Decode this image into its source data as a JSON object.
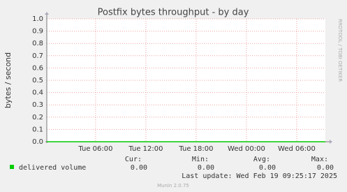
{
  "chart_data": {
    "type": "line",
    "title": "Postfix bytes throughput - by day",
    "ylabel": "bytes / second",
    "side_text": "RRDTOOL / TOBI OETIKER",
    "x": [
      0.17,
      33.42
    ],
    "series": [
      {
        "name": "delivered volume",
        "color": "#00cc00",
        "values": [
          0,
          0
        ]
      }
    ],
    "xlim": [
      0.17,
      33.42
    ],
    "xticks": [
      {
        "value": 6,
        "label": "Tue 06:00"
      },
      {
        "value": 12,
        "label": "Tue 12:00"
      },
      {
        "value": 18,
        "label": "Tue 18:00"
      },
      {
        "value": 24,
        "label": "Wed 00:00"
      },
      {
        "value": 30,
        "label": "Wed 06:00"
      }
    ],
    "ylim": [
      0,
      1
    ],
    "yticks": [
      {
        "value": 0,
        "label": "0.0"
      },
      0.1,
      0.2,
      0.3,
      0.4,
      0.5,
      0.6,
      0.7,
      0.8,
      0.9,
      {
        "value": 1,
        "label": "1.0"
      }
    ],
    "grid": true,
    "stats": [
      {
        "label": "Cur:",
        "value": "0.00"
      },
      {
        "label": "Min:",
        "value": "0.00"
      },
      {
        "label": "Avg:",
        "value": "0.00"
      },
      {
        "label": "Max:",
        "value": "0.00"
      }
    ],
    "last_update": "Last update: Wed Feb 19 09:25:17 2025",
    "footer": "Munin 2.0.75"
  }
}
